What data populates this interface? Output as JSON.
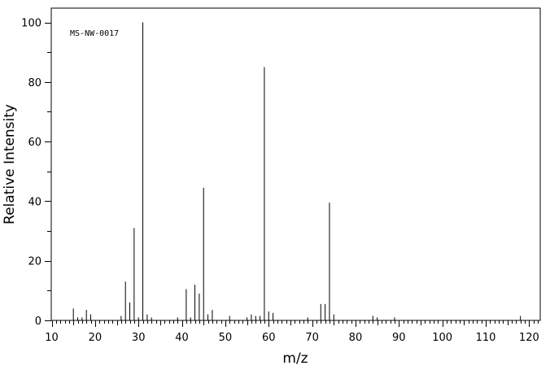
{
  "chart_data": {
    "type": "bar",
    "title": "",
    "annotation": "MS-NW-0017",
    "xlabel": "m/z",
    "ylabel": "Relative Intensity",
    "xlim": [
      10,
      122
    ],
    "ylim": [
      0,
      100
    ],
    "xticks": [
      10,
      20,
      30,
      40,
      50,
      60,
      70,
      80,
      90,
      100,
      110,
      120
    ],
    "yticks": [
      0,
      20,
      40,
      60,
      80,
      100
    ],
    "grid": false,
    "legend": "none",
    "x": [
      15,
      16,
      17,
      18,
      19,
      26,
      27,
      28,
      29,
      30,
      31,
      32,
      33,
      39,
      41,
      42,
      43,
      44,
      45,
      46,
      47,
      51,
      55,
      56,
      57,
      58,
      59,
      60,
      61,
      69,
      72,
      73,
      74,
      75,
      84,
      85,
      89,
      118
    ],
    "y": [
      4,
      1,
      1,
      3.5,
      2,
      1.5,
      13,
      6,
      31,
      1,
      100,
      2,
      1,
      1,
      10.5,
      1,
      12,
      9,
      44.5,
      2,
      3.5,
      1.5,
      1,
      2,
      1.5,
      1.5,
      85,
      3,
      2.5,
      1,
      5.5,
      5.5,
      39.5,
      2,
      1.5,
      1,
      1,
      1.5
    ]
  }
}
